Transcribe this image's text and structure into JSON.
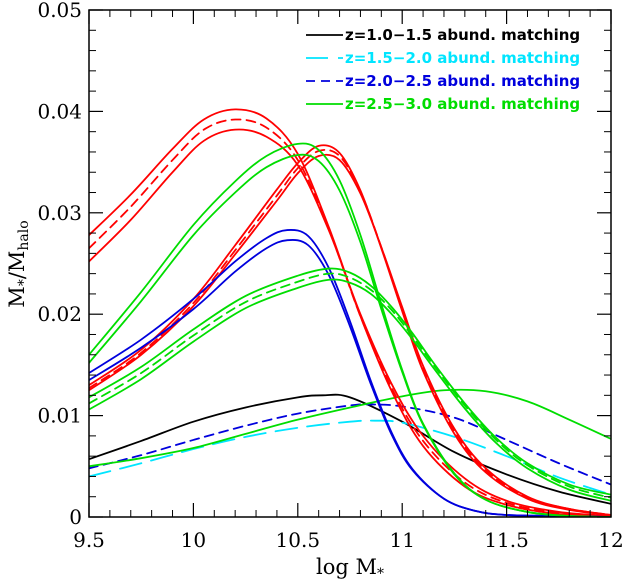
{
  "chart_data": {
    "type": "line",
    "xlabel": "log M",
    "xlabel_sub": "*",
    "ylabel_main": "M",
    "ylabel_num_sub": "*",
    "ylabel_sep": "/M",
    "ylabel_den_sub": "halo",
    "xlim": [
      9.5,
      12
    ],
    "ylim": [
      0,
      0.05
    ],
    "x_ticks": [
      9.5,
      10,
      10.5,
      11,
      11.5,
      12
    ],
    "x_tick_labels": [
      "9.5",
      "10",
      "10.5",
      "11",
      "11.5",
      "12"
    ],
    "y_ticks": [
      0,
      0.01,
      0.02,
      0.03,
      0.04,
      0.05
    ],
    "y_tick_labels": [
      "0",
      "0.01",
      "0.02",
      "0.03",
      "0.04",
      "0.05"
    ],
    "legend_position": "top-right",
    "legend": [
      {
        "label": "z=1.0−1.5  abund. matching",
        "color": "#000000",
        "dash": "solid"
      },
      {
        "label": "z=1.5−2.0  abund. matching",
        "color": "#00e5ff",
        "dash": "longdash"
      },
      {
        "label": "z=2.0−2.5  abund. matching",
        "color": "#0000dd",
        "dash": "dash"
      },
      {
        "label": "z=2.5−3.0  abund. matching",
        "color": "#00dd00",
        "dash": "solid"
      }
    ],
    "series": [
      {
        "color": "#000000",
        "dash": "solid",
        "x": [
          9.5,
          9.75,
          10,
          10.25,
          10.5,
          10.62,
          10.75,
          11,
          11.25,
          11.5,
          11.75,
          12
        ],
        "y": [
          0.0057,
          0.0075,
          0.0094,
          0.0108,
          0.0118,
          0.012,
          0.0118,
          0.0094,
          0.0064,
          0.0042,
          0.0025,
          0.0013
        ]
      },
      {
        "color": "#00e5ff",
        "dash": "longdash",
        "x": [
          9.5,
          9.75,
          10,
          10.25,
          10.5,
          10.75,
          10.87,
          11,
          11.25,
          11.5,
          11.75,
          12
        ],
        "y": [
          0.004,
          0.0053,
          0.0067,
          0.0079,
          0.0088,
          0.0094,
          0.0095,
          0.0093,
          0.0079,
          0.006,
          0.0039,
          0.0022
        ]
      },
      {
        "color": "#0000dd",
        "dash": "dash",
        "x": [
          9.5,
          9.75,
          10,
          10.25,
          10.5,
          10.75,
          10.85,
          11,
          11.25,
          11.5,
          11.75,
          12
        ],
        "y": [
          0.0048,
          0.0061,
          0.0076,
          0.009,
          0.0102,
          0.011,
          0.0111,
          0.0109,
          0.0098,
          0.0076,
          0.0053,
          0.0032
        ]
      },
      {
        "color": "#00dd00",
        "dash": "solid",
        "x": [
          9.5,
          9.75,
          10,
          10.25,
          10.5,
          10.75,
          11,
          11.2,
          11.4,
          11.6,
          11.8,
          12
        ],
        "y": [
          0.005,
          0.0058,
          0.0068,
          0.0082,
          0.0096,
          0.0108,
          0.0119,
          0.0125,
          0.0124,
          0.0114,
          0.0096,
          0.0077
        ]
      },
      {
        "color": "#ff0000",
        "dash": "solid",
        "x": [
          9.5,
          9.7,
          9.9,
          10.05,
          10.2,
          10.35,
          10.5,
          10.65,
          10.8,
          10.95,
          11.1,
          11.3,
          11.5,
          11.75,
          12
        ],
        "y": [
          0.0278,
          0.0318,
          0.0363,
          0.0392,
          0.0402,
          0.0393,
          0.0358,
          0.0285,
          0.0198,
          0.0124,
          0.007,
          0.003,
          0.0012,
          0.0003,
          0.0001
        ]
      },
      {
        "color": "#ff0000",
        "dash": "dash",
        "x": [
          9.5,
          9.7,
          9.9,
          10.05,
          10.2,
          10.35,
          10.5,
          10.65,
          10.8,
          10.95,
          11.1,
          11.3,
          11.5,
          11.75,
          12
        ],
        "y": [
          0.0265,
          0.0306,
          0.0352,
          0.0382,
          0.0392,
          0.0384,
          0.0352,
          0.0283,
          0.0198,
          0.0127,
          0.0075,
          0.0034,
          0.0014,
          0.0004,
          0.0001
        ]
      },
      {
        "color": "#ff0000",
        "dash": "solid",
        "x": [
          9.5,
          9.7,
          9.9,
          10.05,
          10.2,
          10.35,
          10.5,
          10.65,
          10.8,
          10.95,
          11.1,
          11.3,
          11.5,
          11.75,
          12
        ],
        "y": [
          0.0252,
          0.0293,
          0.034,
          0.0371,
          0.0382,
          0.0375,
          0.0347,
          0.0282,
          0.02,
          0.0131,
          0.008,
          0.0038,
          0.0016,
          0.0005,
          0.0001
        ]
      },
      {
        "color": "#ff0000",
        "dash": "solid",
        "x": [
          9.5,
          9.75,
          10,
          10.2,
          10.4,
          10.5,
          10.6,
          10.7,
          10.8,
          10.9,
          11,
          11.1,
          11.25,
          11.4,
          11.6,
          11.8,
          12
        ],
        "y": [
          0.013,
          0.0165,
          0.0215,
          0.0268,
          0.0323,
          0.0349,
          0.0366,
          0.0359,
          0.0322,
          0.0265,
          0.0203,
          0.0144,
          0.0082,
          0.0044,
          0.0018,
          0.0007,
          0.0002
        ]
      },
      {
        "color": "#ff0000",
        "dash": "solid",
        "x": [
          9.5,
          9.75,
          10,
          10.2,
          10.4,
          10.5,
          10.6,
          10.7,
          10.8,
          10.9,
          11,
          11.1,
          11.25,
          11.4,
          11.6,
          11.8,
          12
        ],
        "y": [
          0.0125,
          0.016,
          0.0208,
          0.0259,
          0.0312,
          0.0339,
          0.0356,
          0.0352,
          0.0319,
          0.0266,
          0.0207,
          0.0149,
          0.0087,
          0.0048,
          0.002,
          0.0008,
          0.0002
        ]
      },
      {
        "color": "#ff0000",
        "dash": "dash",
        "x": [
          9.5,
          9.75,
          10,
          10.2,
          10.4,
          10.5,
          10.6,
          10.7,
          10.8,
          10.9,
          11,
          11.1,
          11.25,
          11.4,
          11.6,
          11.8,
          12
        ],
        "y": [
          0.0127,
          0.0162,
          0.0211,
          0.0263,
          0.0317,
          0.0344,
          0.0361,
          0.0356,
          0.0321,
          0.0266,
          0.0205,
          0.0146,
          0.0085,
          0.0046,
          0.0019,
          0.0008,
          0.0002
        ]
      },
      {
        "color": "#0000dd",
        "dash": "solid",
        "x": [
          9.5,
          9.75,
          10,
          10.2,
          10.35,
          10.45,
          10.55,
          10.65,
          10.75,
          10.85,
          10.95,
          11.05,
          11.2,
          11.35,
          11.5,
          11.75,
          12
        ],
        "y": [
          0.0142,
          0.0175,
          0.0215,
          0.0252,
          0.0275,
          0.0283,
          0.0277,
          0.0245,
          0.0193,
          0.0134,
          0.0083,
          0.0047,
          0.0018,
          0.0006,
          0.0002,
          0.0001,
          0
        ],
        "y_lo": [
          0.0135,
          0.0167,
          0.0205,
          0.0242,
          0.0265,
          0.0273,
          0.0268,
          0.0238,
          0.0188,
          0.0131,
          0.0081,
          0.0046,
          0.0018,
          0.0006,
          0.0002,
          0.0001,
          0
        ]
      },
      {
        "color": "#00dd00",
        "dash": "solid",
        "x": [
          9.5,
          9.75,
          10,
          10.2,
          10.35,
          10.5,
          10.6,
          10.7,
          10.8,
          10.9,
          11,
          11.1,
          11.25,
          11.4,
          11.6,
          11.8,
          12
        ],
        "y": [
          0.016,
          0.0222,
          0.0288,
          0.0331,
          0.0356,
          0.0368,
          0.0362,
          0.0332,
          0.0278,
          0.021,
          0.0145,
          0.0092,
          0.0043,
          0.0017,
          0.0005,
          0.0001,
          0
        ]
      },
      {
        "color": "#00dd00",
        "dash": "solid",
        "x": [
          9.5,
          9.75,
          10,
          10.2,
          10.35,
          10.5,
          10.6,
          10.7,
          10.8,
          10.9,
          11,
          11.1,
          11.25,
          11.4,
          11.6,
          11.8,
          12
        ],
        "y": [
          0.0152,
          0.0213,
          0.0278,
          0.032,
          0.0345,
          0.0357,
          0.0351,
          0.0322,
          0.0271,
          0.0205,
          0.0143,
          0.0091,
          0.0042,
          0.0017,
          0.0005,
          0.0001,
          0
        ]
      },
      {
        "color": "#00dd00",
        "dash": "solid",
        "x": [
          9.5,
          9.75,
          10,
          10.25,
          10.5,
          10.65,
          10.75,
          10.85,
          10.95,
          11.05,
          11.15,
          11.3,
          11.45,
          11.6,
          11.8,
          12
        ],
        "y": [
          0.0118,
          0.0148,
          0.0185,
          0.0218,
          0.0238,
          0.0245,
          0.0241,
          0.0228,
          0.0207,
          0.0181,
          0.0152,
          0.0112,
          0.0078,
          0.0053,
          0.0032,
          0.0022
        ]
      },
      {
        "color": "#00dd00",
        "dash": "dash",
        "x": [
          9.5,
          9.75,
          10,
          10.25,
          10.5,
          10.65,
          10.75,
          10.85,
          10.95,
          11.05,
          11.15,
          11.3,
          11.45,
          11.6,
          11.8,
          12
        ],
        "y": [
          0.0112,
          0.0142,
          0.0179,
          0.0212,
          0.0232,
          0.024,
          0.0236,
          0.0224,
          0.0204,
          0.0178,
          0.015,
          0.011,
          0.0076,
          0.0051,
          0.003,
          0.0019
        ]
      },
      {
        "color": "#00dd00",
        "dash": "solid",
        "x": [
          9.5,
          9.75,
          10,
          10.25,
          10.5,
          10.65,
          10.75,
          10.85,
          10.95,
          11.05,
          11.15,
          11.3,
          11.45,
          11.6,
          11.8,
          12
        ],
        "y": [
          0.0106,
          0.0136,
          0.0173,
          0.0206,
          0.0226,
          0.0234,
          0.0231,
          0.022,
          0.02,
          0.0175,
          0.0147,
          0.0107,
          0.0073,
          0.0048,
          0.0027,
          0.0016
        ]
      }
    ]
  }
}
